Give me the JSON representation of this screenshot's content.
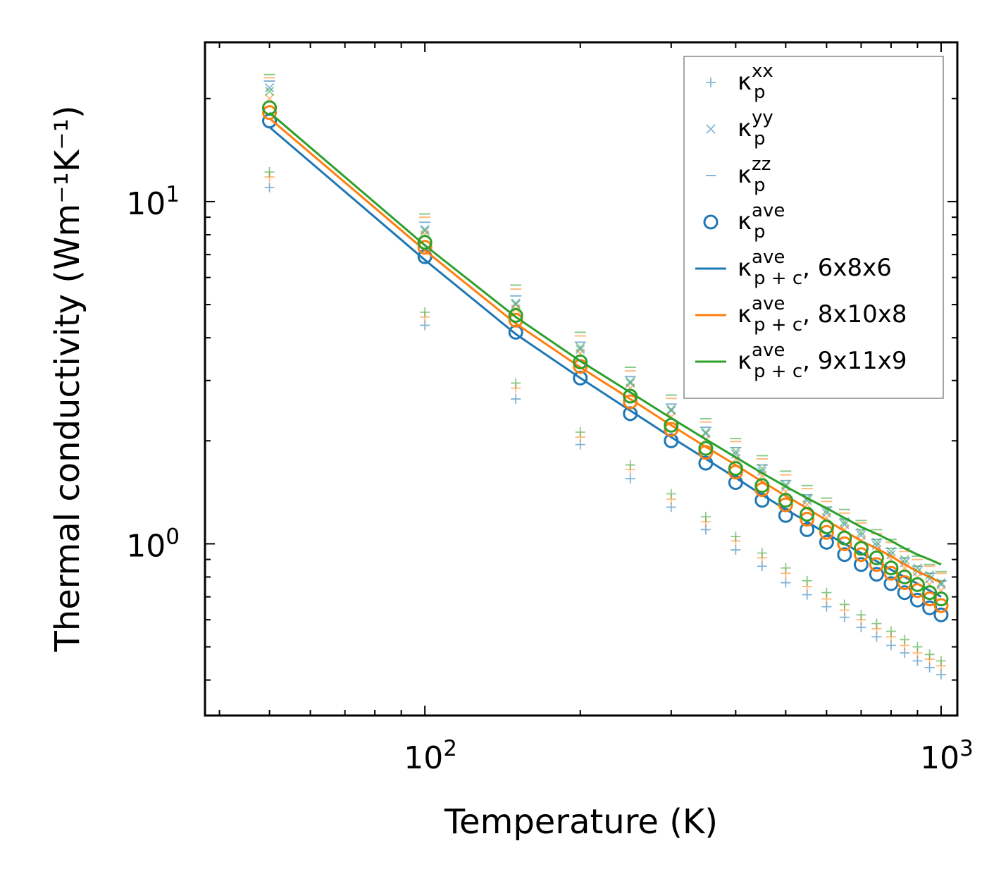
{
  "chart_data": {
    "type": "scatter",
    "title": "",
    "xlabel": "Temperature (K)",
    "ylabel": "Thermal conductivity (Wm⁻¹K⁻¹)",
    "xscale": "log",
    "yscale": "log",
    "xlim": [
      37.5,
      1075
    ],
    "ylim": [
      0.315,
      29.2
    ],
    "xticks": [
      {
        "value": 100,
        "base": "10",
        "exp": "2"
      },
      {
        "value": 1000,
        "base": "10",
        "exp": "3"
      }
    ],
    "yticks": [
      {
        "value": 1,
        "base": "10",
        "exp": "0"
      },
      {
        "value": 10,
        "base": "10",
        "exp": "1"
      }
    ],
    "temperatures": [
      50,
      100,
      150,
      200,
      250,
      300,
      350,
      400,
      450,
      500,
      550,
      600,
      650,
      700,
      750,
      800,
      850,
      900,
      950,
      1000
    ],
    "series": [
      {
        "name": "6x8x6",
        "color": "#1f77b4",
        "kxx": [
          11.0,
          4.35,
          2.65,
          1.95,
          1.55,
          1.28,
          1.1,
          0.96,
          0.86,
          0.77,
          0.71,
          0.655,
          0.61,
          0.57,
          0.535,
          0.505,
          0.48,
          0.455,
          0.435,
          0.415
        ],
        "kyy": [
          21.5,
          8.3,
          5.05,
          3.7,
          2.95,
          2.45,
          2.1,
          1.83,
          1.63,
          1.47,
          1.34,
          1.23,
          1.14,
          1.06,
          0.99,
          0.93,
          0.88,
          0.83,
          0.79,
          0.76
        ],
        "kzz": [
          22.5,
          8.7,
          5.3,
          3.88,
          3.08,
          2.56,
          2.19,
          1.91,
          1.7,
          1.53,
          1.39,
          1.28,
          1.18,
          1.1,
          1.03,
          0.97,
          0.91,
          0.86,
          0.82,
          0.78
        ],
        "kave": [
          17.2,
          6.9,
          4.15,
          3.05,
          2.4,
          2.0,
          1.72,
          1.51,
          1.34,
          1.21,
          1.1,
          1.01,
          0.93,
          0.87,
          0.815,
          0.765,
          0.72,
          0.685,
          0.65,
          0.62
        ],
        "kpc": [
          16.5,
          6.75,
          4.1,
          3.05,
          2.45,
          2.05,
          1.77,
          1.56,
          1.39,
          1.26,
          1.16,
          1.07,
          1.0,
          0.94,
          0.89,
          0.84,
          0.8,
          0.765,
          0.73,
          0.7
        ]
      },
      {
        "name": "8x10x8",
        "color": "#ff7f0e",
        "kxx": [
          11.8,
          4.6,
          2.85,
          2.05,
          1.65,
          1.35,
          1.16,
          1.02,
          0.91,
          0.82,
          0.75,
          0.69,
          0.64,
          0.6,
          0.565,
          0.535,
          0.505,
          0.48,
          0.46,
          0.44
        ],
        "kyy": [
          20.0,
          8.0,
          4.85,
          3.6,
          2.85,
          2.35,
          2.02,
          1.77,
          1.58,
          1.42,
          1.3,
          1.19,
          1.1,
          1.02,
          0.96,
          0.9,
          0.85,
          0.8,
          0.76,
          0.73
        ],
        "kzz": [
          23.0,
          9.0,
          5.55,
          4.05,
          3.2,
          2.66,
          2.27,
          1.99,
          1.77,
          1.59,
          1.45,
          1.33,
          1.23,
          1.15,
          1.07,
          1.01,
          0.95,
          0.9,
          0.86,
          0.82
        ],
        "kave": [
          18.2,
          7.35,
          4.5,
          3.3,
          2.6,
          2.16,
          1.85,
          1.62,
          1.44,
          1.3,
          1.18,
          1.08,
          1.0,
          0.93,
          0.87,
          0.82,
          0.77,
          0.73,
          0.69,
          0.66
        ],
        "kpc": [
          17.5,
          7.2,
          4.4,
          3.28,
          2.65,
          2.22,
          1.92,
          1.7,
          1.52,
          1.38,
          1.27,
          1.17,
          1.09,
          1.02,
          0.97,
          0.92,
          0.87,
          0.83,
          0.8,
          0.77
        ]
      },
      {
        "name": "9x11x9",
        "color": "#2ca02c",
        "kxx": [
          12.2,
          4.75,
          2.95,
          2.12,
          1.7,
          1.4,
          1.2,
          1.05,
          0.94,
          0.85,
          0.78,
          0.72,
          0.665,
          0.62,
          0.585,
          0.555,
          0.525,
          0.5,
          0.475,
          0.455
        ],
        "kyy": [
          21.0,
          8.2,
          5.0,
          3.75,
          2.98,
          2.47,
          2.12,
          1.86,
          1.66,
          1.49,
          1.36,
          1.25,
          1.16,
          1.08,
          1.01,
          0.95,
          0.9,
          0.85,
          0.81,
          0.77
        ],
        "kzz": [
          23.5,
          9.2,
          5.7,
          4.15,
          3.28,
          2.72,
          2.32,
          2.03,
          1.81,
          1.63,
          1.48,
          1.36,
          1.26,
          1.17,
          1.1,
          1.03,
          0.97,
          0.92,
          0.87,
          0.83
        ],
        "kave": [
          18.8,
          7.6,
          4.65,
          3.4,
          2.7,
          2.22,
          1.9,
          1.66,
          1.48,
          1.34,
          1.22,
          1.12,
          1.04,
          0.97,
          0.91,
          0.85,
          0.8,
          0.76,
          0.72,
          0.69
        ],
        "kpc": [
          18.2,
          7.45,
          4.6,
          3.42,
          2.77,
          2.33,
          2.02,
          1.79,
          1.61,
          1.47,
          1.36,
          1.27,
          1.19,
          1.12,
          1.07,
          1.02,
          0.97,
          0.93,
          0.9,
          0.87
        ]
      }
    ],
    "legend": {
      "position": "upper-right",
      "entries": [
        {
          "kind": "plus",
          "color": "#1f77b4",
          "sym": "κ",
          "sup": "xx",
          "sub": "p",
          "label": ""
        },
        {
          "kind": "cross",
          "color": "#1f77b4",
          "sym": "κ",
          "sup": "yy",
          "sub": "p",
          "label": ""
        },
        {
          "kind": "dash",
          "color": "#1f77b4",
          "sym": "κ",
          "sup": "zz",
          "sub": "p",
          "label": ""
        },
        {
          "kind": "circle",
          "color": "#1f77b4",
          "sym": "κ",
          "sup": "ave",
          "sub": "p",
          "label": ""
        },
        {
          "kind": "line",
          "color": "#1f77b4",
          "sym": "κ",
          "sup": "ave",
          "sub": "p + c",
          "label": ", 6x8x6"
        },
        {
          "kind": "line",
          "color": "#ff7f0e",
          "sym": "κ",
          "sup": "ave",
          "sub": "p + c",
          "label": ", 8x10x8"
        },
        {
          "kind": "line",
          "color": "#2ca02c",
          "sym": "κ",
          "sup": "ave",
          "sub": "p + c",
          "label": ", 9x11x9"
        }
      ]
    },
    "grid": false
  }
}
